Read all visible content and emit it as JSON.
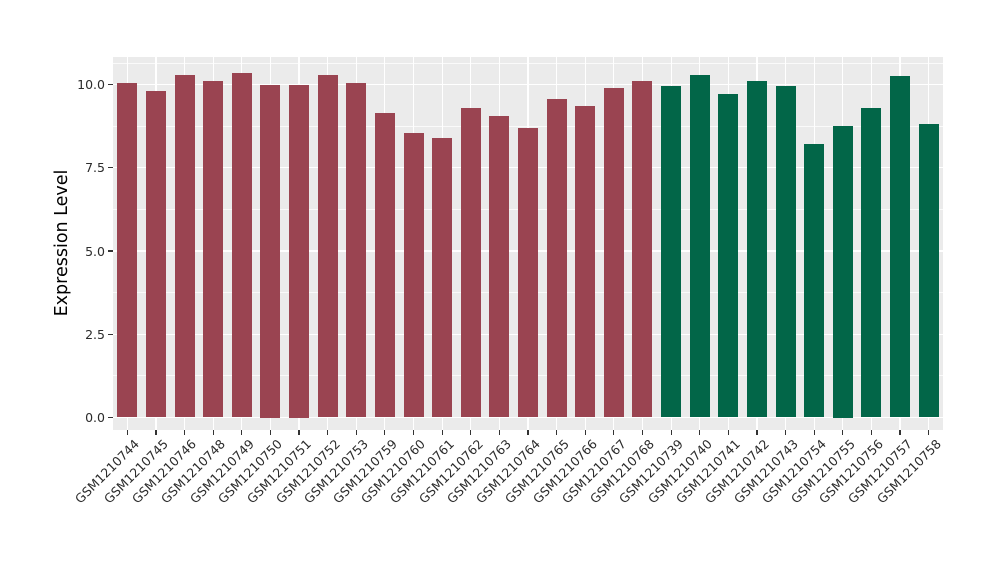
{
  "chart_data": {
    "type": "bar",
    "ylabel": "Expression Level",
    "ylim": [
      -0.37,
      10.81
    ],
    "grid": true,
    "legend": "none",
    "panel_bg": "#EBEBEB",
    "grid_color": "#FFFFFF",
    "tick_label_color": "#2b2b2b",
    "yticks_major": [
      0.0,
      2.5,
      5.0,
      7.5,
      10.0
    ],
    "ytick_labels": [
      "0.0",
      "2.5",
      "5.0",
      "7.5",
      "10.0"
    ],
    "yticks_minor": [
      1.25,
      3.75,
      6.25,
      8.75,
      10.625
    ],
    "palette": {
      "maroon": "#9A4451",
      "green": "#026648"
    },
    "bars": [
      {
        "label": "GSM1210744",
        "value": 10.05,
        "group": "maroon"
      },
      {
        "label": "GSM1210745",
        "value": 9.8,
        "group": "maroon"
      },
      {
        "label": "GSM1210746",
        "value": 10.3,
        "group": "maroon"
      },
      {
        "label": "GSM1210748",
        "value": 10.1,
        "group": "maroon"
      },
      {
        "label": "GSM1210749",
        "value": 10.35,
        "group": "maroon"
      },
      {
        "label": "GSM1210750",
        "value": 10.0,
        "group": "maroon"
      },
      {
        "label": "GSM1210751",
        "value": 10.0,
        "group": "maroon"
      },
      {
        "label": "GSM1210752",
        "value": 10.3,
        "group": "maroon"
      },
      {
        "label": "GSM1210753",
        "value": 10.05,
        "group": "maroon"
      },
      {
        "label": "GSM1210759",
        "value": 9.15,
        "group": "maroon"
      },
      {
        "label": "GSM1210760",
        "value": 8.55,
        "group": "maroon"
      },
      {
        "label": "GSM1210761",
        "value": 8.4,
        "group": "maroon"
      },
      {
        "label": "GSM1210762",
        "value": 9.3,
        "group": "maroon"
      },
      {
        "label": "GSM1210763",
        "value": 9.05,
        "group": "maroon"
      },
      {
        "label": "GSM1210764",
        "value": 8.7,
        "group": "maroon"
      },
      {
        "label": "GSM1210765",
        "value": 9.55,
        "group": "maroon"
      },
      {
        "label": "GSM1210766",
        "value": 9.35,
        "group": "maroon"
      },
      {
        "label": "GSM1210767",
        "value": 9.9,
        "group": "maroon"
      },
      {
        "label": "GSM1210768",
        "value": 10.1,
        "group": "maroon"
      },
      {
        "label": "GSM1210739",
        "value": 9.95,
        "group": "green"
      },
      {
        "label": "GSM1210740",
        "value": 10.3,
        "group": "green"
      },
      {
        "label": "GSM1210741",
        "value": 9.7,
        "group": "green"
      },
      {
        "label": "GSM1210742",
        "value": 10.1,
        "group": "green"
      },
      {
        "label": "GSM1210743",
        "value": 9.95,
        "group": "green"
      },
      {
        "label": "GSM1210754",
        "value": 8.2,
        "group": "green"
      },
      {
        "label": "GSM1210755",
        "value": 8.75,
        "group": "green"
      },
      {
        "label": "GSM1210756",
        "value": 9.3,
        "group": "green"
      },
      {
        "label": "GSM1210757",
        "value": 10.25,
        "group": "green"
      },
      {
        "label": "GSM1210758",
        "value": 8.8,
        "group": "green"
      }
    ]
  }
}
